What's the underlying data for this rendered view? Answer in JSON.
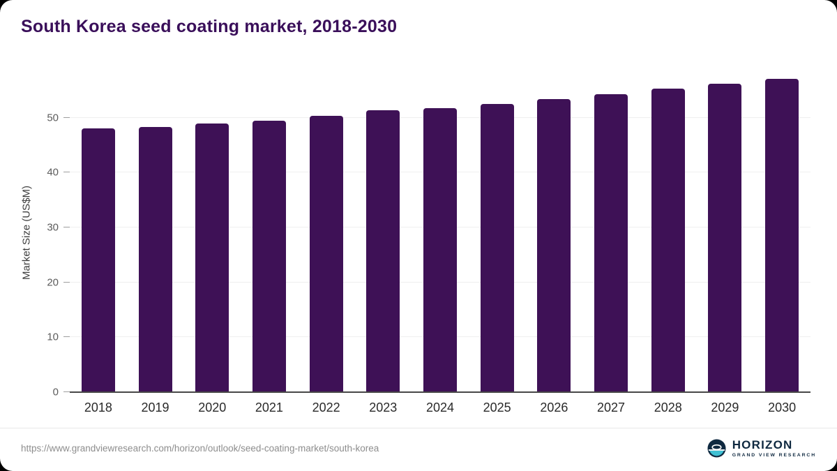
{
  "chart": {
    "title": "South Korea seed coating market, 2018-2030",
    "ylabel": "Market Size (US$M)",
    "yticks": [
      0,
      10,
      20,
      30,
      40,
      50
    ]
  },
  "chart_data": {
    "type": "bar",
    "categories": [
      "2018",
      "2019",
      "2020",
      "2021",
      "2022",
      "2023",
      "2024",
      "2025",
      "2026",
      "2027",
      "2028",
      "2029",
      "2030"
    ],
    "values": [
      48.0,
      48.3,
      48.9,
      49.4,
      50.3,
      51.4,
      51.7,
      52.5,
      53.4,
      54.3,
      55.3,
      56.2,
      57.0
    ],
    "title": "South Korea seed coating market, 2018-2030",
    "xlabel": "",
    "ylabel": "Market Size (US$M)",
    "ylim": [
      0,
      58.2
    ],
    "grid": true,
    "legend": false,
    "bar_color": "#3e1156"
  },
  "footer": {
    "url": "https://www.grandviewresearch.com/horizon/outlook/seed-coating-market/south-korea",
    "logo_text": "HORIZON",
    "logo_subtext": "GRAND VIEW RESEARCH"
  },
  "colors": {
    "bar": "#3e1156",
    "title": "#3a0f5a",
    "logo_navy": "#0f2940",
    "logo_teal": "#3fc0d3"
  }
}
